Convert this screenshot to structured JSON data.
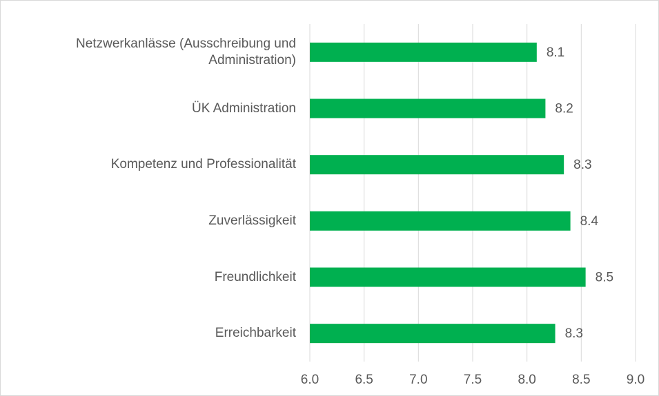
{
  "chart_data": {
    "type": "barh",
    "categories": [
      "Netzwerkanlässe (Ausschreibung und Administration)",
      "ÜK Administration",
      "Kompetenz und Professionalität",
      "Zuverlässigkeit",
      "Freundlichkeit",
      "Erreichbarkeit"
    ],
    "values": [
      8.09,
      8.17,
      8.34,
      8.4,
      8.54,
      8.26
    ],
    "value_labels": [
      "8.1",
      "8.2",
      "8.3",
      "8.4",
      "8.5",
      "8.3"
    ],
    "color": "#00b050",
    "xlim": [
      6,
      9
    ],
    "xticks": [
      {
        "value": 6,
        "label": "6.0"
      },
      6.5,
      {
        "value": 7,
        "label": "7.0"
      },
      7.5,
      {
        "value": 8,
        "label": "8.0"
      },
      8.5,
      {
        "value": 9,
        "label": "9.0"
      }
    ],
    "grid": true
  }
}
